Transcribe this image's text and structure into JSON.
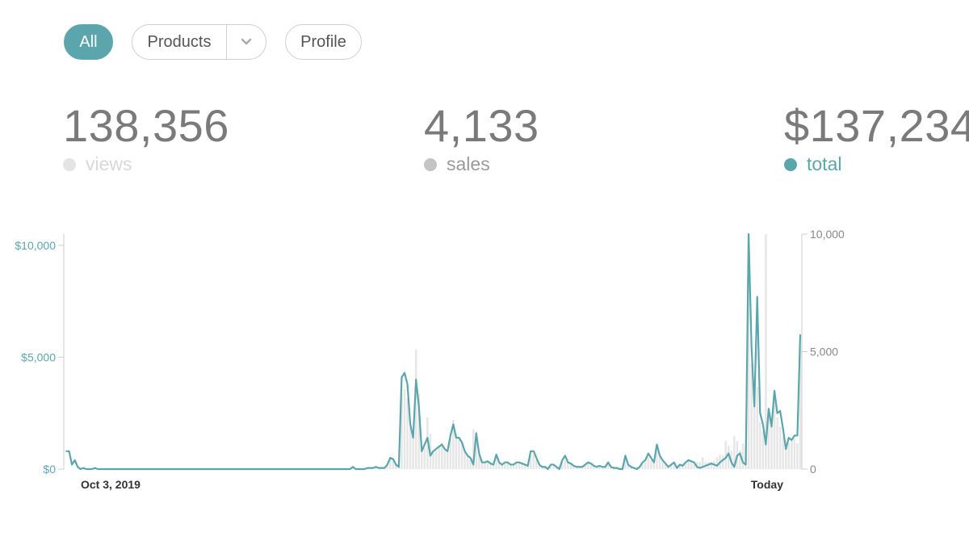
{
  "filters": {
    "all_label": "All",
    "products_label": "Products",
    "products_dropdown_icon": "chevron-down-icon",
    "profile_label": "Profile",
    "active": "All"
  },
  "stats": {
    "views": {
      "value": "138,356",
      "label": "views",
      "color": "#e4e4e4",
      "label_color": "#d8d8d8"
    },
    "sales": {
      "value": "4,133",
      "label": "sales",
      "color": "#c4c4c4",
      "label_color": "#9a9a9a"
    },
    "total": {
      "value": "$137,234",
      "label": "total",
      "color": "#5ba6ac",
      "label_color": "#5ba6ac"
    }
  },
  "chart_data": {
    "type": "line",
    "x_start_label": "Oct 3, 2019",
    "x_end_label": "Today",
    "left_axis": {
      "ticks": [
        "$0",
        "$5,000",
        "$10,000"
      ],
      "range": [
        0,
        10500
      ]
    },
    "right_axis": {
      "ticks": [
        "0",
        "5,000",
        "10,000"
      ],
      "range": [
        0,
        10000
      ]
    },
    "legend": "above chart (stats row)",
    "grid": false,
    "series": [
      {
        "name": "total",
        "color": "#5ba6ac",
        "values": [
          800,
          800,
          200,
          400,
          100,
          0,
          50,
          0,
          0,
          0,
          50,
          0,
          0,
          0,
          0,
          0,
          0,
          0,
          0,
          0,
          0,
          0,
          0,
          0,
          0,
          0,
          0,
          0,
          0,
          0,
          0,
          0,
          0,
          0,
          0,
          0,
          0,
          0,
          0,
          0,
          0,
          0,
          0,
          0,
          0,
          0,
          0,
          0,
          0,
          0,
          0,
          0,
          0,
          0,
          0,
          0,
          0,
          0,
          0,
          0,
          0,
          0,
          0,
          0,
          0,
          0,
          0,
          0,
          0,
          0,
          0,
          0,
          0,
          0,
          0,
          0,
          0,
          0,
          0,
          0,
          0,
          0,
          0,
          0,
          0,
          0,
          0,
          0,
          0,
          0,
          0,
          0,
          0,
          0,
          0,
          0,
          0,
          0,
          0,
          0,
          100,
          0,
          0,
          0,
          0,
          50,
          50,
          50,
          100,
          50,
          50,
          50,
          200,
          500,
          450,
          200,
          100,
          4100,
          4300,
          3800,
          2000,
          1400,
          4000,
          2800,
          800,
          1100,
          1400,
          600,
          800,
          900,
          1000,
          1100,
          900,
          800,
          1500,
          2000,
          1400,
          1400,
          1200,
          800,
          600,
          500,
          200,
          1600,
          700,
          300,
          300,
          350,
          250,
          200,
          650,
          300,
          200,
          300,
          300,
          200,
          200,
          300,
          300,
          250,
          200,
          150,
          800,
          800,
          500,
          200,
          100,
          100,
          0,
          200,
          200,
          100,
          0,
          400,
          600,
          300,
          250,
          150,
          100,
          100,
          100,
          200,
          300,
          250,
          150,
          100,
          150,
          100,
          100,
          300,
          100,
          50,
          50,
          0,
          0,
          600,
          200,
          100,
          50,
          0,
          100,
          300,
          400,
          700,
          500,
          300,
          1100,
          600,
          400,
          250,
          100,
          200,
          300,
          50,
          200,
          150,
          300,
          400,
          350,
          300,
          100,
          50,
          100,
          150,
          200,
          250,
          200,
          150,
          300,
          400,
          500,
          700,
          300,
          100,
          600,
          700,
          300,
          200,
          10500,
          5500,
          2800,
          7700,
          2500,
          2000,
          1100,
          2700,
          1900,
          3500,
          2500,
          2600,
          1800,
          900,
          1400,
          1300,
          1500,
          1500,
          6000
        ]
      },
      {
        "name": "views",
        "color": "#e6e6e6",
        "values": [
          0,
          0,
          0,
          0,
          0,
          0,
          0,
          0,
          0,
          0,
          0,
          0,
          0,
          0,
          0,
          0,
          0,
          0,
          0,
          0,
          0,
          0,
          0,
          0,
          0,
          0,
          0,
          0,
          0,
          0,
          0,
          0,
          0,
          0,
          0,
          0,
          0,
          0,
          0,
          0,
          0,
          0,
          0,
          0,
          0,
          0,
          0,
          0,
          0,
          0,
          0,
          0,
          0,
          0,
          0,
          0,
          0,
          0,
          0,
          0,
          0,
          0,
          0,
          0,
          0,
          0,
          0,
          0,
          0,
          0,
          0,
          0,
          0,
          0,
          0,
          0,
          0,
          0,
          0,
          0,
          0,
          0,
          0,
          0,
          0,
          0,
          0,
          0,
          0,
          0,
          0,
          0,
          0,
          0,
          0,
          0,
          0,
          0,
          0,
          0,
          50,
          50,
          50,
          50,
          50,
          50,
          50,
          50,
          100,
          50,
          50,
          50,
          200,
          400,
          400,
          200,
          200,
          3200,
          3400,
          3000,
          1800,
          1300,
          5100,
          3200,
          800,
          900,
          2200,
          1500,
          800,
          800,
          1000,
          1100,
          900,
          800,
          1300,
          2100,
          1500,
          1300,
          1100,
          800,
          600,
          500,
          1700,
          1600,
          600,
          400,
          300,
          300,
          250,
          250,
          500,
          300,
          200,
          300,
          300,
          200,
          200,
          300,
          300,
          250,
          200,
          150,
          600,
          600,
          400,
          200,
          100,
          100,
          100,
          150,
          150,
          100,
          100,
          300,
          400,
          300,
          250,
          150,
          100,
          100,
          100,
          150,
          250,
          200,
          150,
          100,
          150,
          100,
          100,
          250,
          100,
          100,
          100,
          100,
          100,
          400,
          200,
          100,
          100,
          100,
          100,
          250,
          300,
          500,
          400,
          300,
          900,
          500,
          350,
          250,
          150,
          200,
          250,
          150,
          200,
          200,
          250,
          350,
          300,
          250,
          300,
          300,
          500,
          300,
          300,
          300,
          350,
          500,
          600,
          600,
          1200,
          1000,
          800,
          1400,
          1200,
          800,
          1100,
          1000,
          10000,
          4500,
          3000,
          3500,
          2000,
          1600,
          10000,
          2400,
          1800,
          2900,
          2200,
          1800,
          1400,
          900,
          1100,
          1200,
          1300,
          1100,
          5200
        ]
      }
    ]
  }
}
